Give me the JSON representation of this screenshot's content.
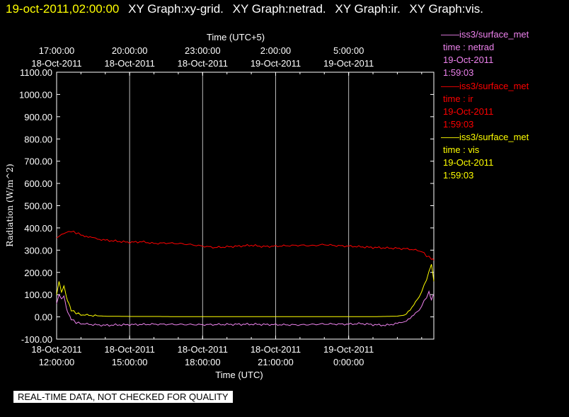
{
  "header": {
    "timestamp": "19-oct-2011,02:00:00",
    "graphs": [
      "XY Graph:xy-grid.",
      "XY Graph:netrad.",
      "XY Graph:ir.",
      "XY Graph:vis."
    ]
  },
  "legend": [
    {
      "source": "——iss3/surface_met",
      "var": "time : netrad",
      "date": "19-Oct-2011",
      "time": "1:59:03",
      "color": "#ee82ee"
    },
    {
      "source": "——iss3/surface_met",
      "var": "time : ir",
      "date": "19-Oct-2011",
      "time": "1:59:03",
      "color": "#ff0000"
    },
    {
      "source": "——iss3/surface_met",
      "var": "time : vis",
      "date": "19-Oct-2011",
      "time": "1:59:03",
      "color": "#ffff00"
    }
  ],
  "disclaimer": "REAL-TIME DATA, NOT CHECKED FOR QUALITY",
  "chart_data": {
    "type": "line",
    "ylabel": "Radiation (W/m^2)",
    "xlabel_bottom": "Time (UTC)",
    "xlabel_top": "Time (UTC+5)",
    "ylim": [
      -100,
      1100
    ],
    "yticks": [
      "1100.00",
      "1000.00",
      "900.00",
      "800.00",
      "700.00",
      "600.00",
      "500.00",
      "400.00",
      "300.00",
      "200.00",
      "100.00",
      "0.00",
      "-100.00"
    ],
    "xlim": [
      "2011-10-18T12:00",
      "2011-10-19T03:30"
    ],
    "xticks_bottom": [
      {
        "date": "18-Oct-2011",
        "time": "12:00:00"
      },
      {
        "date": "18-Oct-2011",
        "time": "15:00:00"
      },
      {
        "date": "18-Oct-2011",
        "time": "18:00:00"
      },
      {
        "date": "18-Oct-2011",
        "time": "21:00:00"
      },
      {
        "date": "19-Oct-2011",
        "time": "0:00:00"
      }
    ],
    "xticks_top": [
      {
        "time": "17:00:00",
        "date": "18-Oct-2011"
      },
      {
        "time": "20:00:00",
        "date": "18-Oct-2011"
      },
      {
        "time": "23:00:00",
        "date": "18-Oct-2011"
      },
      {
        "time": "2:00:00",
        "date": "19-Oct-2011"
      },
      {
        "time": "5:00:00",
        "date": "19-Oct-2011"
      }
    ],
    "grid": true,
    "series": [
      {
        "name": "ir",
        "color": "#ff0000",
        "x": [
          0,
          0.2,
          0.4,
          0.6,
          0.8,
          1,
          1.3,
          1.6,
          2,
          2.5,
          3,
          3.5,
          4,
          4.5,
          5,
          5.5,
          6,
          6.5,
          7,
          7.5,
          8,
          8.5,
          9,
          9.5,
          10,
          10.5,
          11,
          11.5,
          12,
          12.5,
          13,
          13.5,
          14,
          14.5,
          15,
          15.2,
          15.4,
          15.5
        ],
        "y": [
          355,
          370,
          380,
          385,
          378,
          370,
          360,
          352,
          345,
          340,
          335,
          338,
          330,
          332,
          330,
          325,
          318,
          312,
          315,
          318,
          322,
          316,
          318,
          320,
          322,
          320,
          325,
          320,
          318,
          315,
          312,
          310,
          308,
          305,
          295,
          275,
          262,
          255
        ]
      },
      {
        "name": "vis",
        "color": "#ffff00",
        "x": [
          0,
          0.1,
          0.2,
          0.3,
          0.4,
          0.5,
          0.6,
          0.8,
          1,
          1.5,
          2,
          3,
          4,
          5,
          6,
          7,
          8,
          9,
          10,
          11,
          12,
          13,
          13.5,
          14,
          14.3,
          14.6,
          14.9,
          15.1,
          15.3,
          15.4,
          15.5
        ],
        "y": [
          100,
          160,
          110,
          140,
          90,
          60,
          30,
          18,
          10,
          6,
          3,
          2,
          2,
          1,
          1,
          1,
          1,
          1,
          1,
          1,
          1,
          1,
          2,
          3,
          10,
          40,
          90,
          140,
          200,
          240,
          160
        ]
      },
      {
        "name": "netrad",
        "color": "#ee82ee",
        "x": [
          0,
          0.1,
          0.2,
          0.3,
          0.4,
          0.5,
          0.6,
          0.8,
          1,
          1.5,
          2,
          2.5,
          3,
          4,
          5,
          6,
          7,
          8,
          9,
          10,
          11,
          12,
          12.5,
          13,
          13.5,
          14,
          14.3,
          14.6,
          14.9,
          15.1,
          15.3,
          15.4,
          15.5
        ],
        "y": [
          60,
          100,
          80,
          95,
          40,
          10,
          -10,
          -25,
          -30,
          -35,
          -38,
          -36,
          -35,
          -33,
          -34,
          -35,
          -34,
          -33,
          -35,
          -36,
          -32,
          -33,
          -30,
          -35,
          -38,
          -30,
          -20,
          0,
          30,
          70,
          110,
          80,
          100
        ]
      }
    ]
  }
}
